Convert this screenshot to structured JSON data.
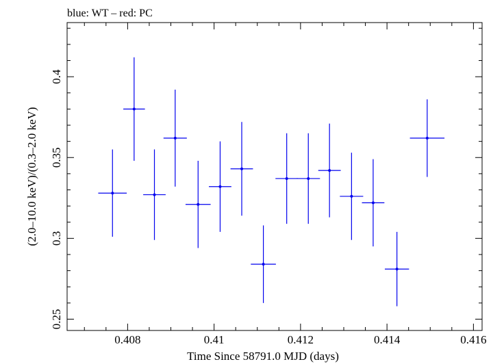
{
  "chart_data": {
    "type": "scatter",
    "title": "blue: WT – red: PC",
    "xlabel": "Time Since 58791.0 MJD (days)",
    "ylabel": "(2.0–10.0 keV)/(0.3–2.0 keV)",
    "xlim": [
      0.4066,
      0.4162
    ],
    "ylim": [
      0.243,
      0.4335
    ],
    "x_ticks": [
      0.408,
      0.41,
      0.412,
      0.414,
      0.416
    ],
    "x_tick_labels": [
      "0.408",
      "0.41",
      "0.412",
      "0.414",
      "0.416"
    ],
    "y_ticks": [
      0.25,
      0.3,
      0.35,
      0.4
    ],
    "y_tick_labels": [
      "0.25",
      "0.3",
      "0.35",
      "0.4"
    ],
    "grid": false,
    "series": [
      {
        "color": "#0000ee",
        "points": [
          {
            "x": 0.40765,
            "xerr": 0.00033,
            "y": 0.328,
            "yerr_lo": 0.027,
            "yerr_hi": 0.027
          },
          {
            "x": 0.40815,
            "xerr": 0.00025,
            "y": 0.38,
            "yerr_lo": 0.032,
            "yerr_hi": 0.032
          },
          {
            "x": 0.40862,
            "xerr": 0.00026,
            "y": 0.327,
            "yerr_lo": 0.028,
            "yerr_hi": 0.028
          },
          {
            "x": 0.4091,
            "xerr": 0.00027,
            "y": 0.362,
            "yerr_lo": 0.03,
            "yerr_hi": 0.03
          },
          {
            "x": 0.40963,
            "xerr": 0.00029,
            "y": 0.321,
            "yerr_lo": 0.027,
            "yerr_hi": 0.027
          },
          {
            "x": 0.41014,
            "xerr": 0.00026,
            "y": 0.332,
            "yerr_lo": 0.028,
            "yerr_hi": 0.028
          },
          {
            "x": 0.41064,
            "xerr": 0.00026,
            "y": 0.343,
            "yerr_lo": 0.029,
            "yerr_hi": 0.029
          },
          {
            "x": 0.41114,
            "xerr": 0.00029,
            "y": 0.284,
            "yerr_lo": 0.024,
            "yerr_hi": 0.024
          },
          {
            "x": 0.41168,
            "xerr": 0.00026,
            "y": 0.337,
            "yerr_lo": 0.028,
            "yerr_hi": 0.028
          },
          {
            "x": 0.41218,
            "xerr": 0.00027,
            "y": 0.337,
            "yerr_lo": 0.028,
            "yerr_hi": 0.028
          },
          {
            "x": 0.41267,
            "xerr": 0.00026,
            "y": 0.342,
            "yerr_lo": 0.029,
            "yerr_hi": 0.029
          },
          {
            "x": 0.41318,
            "xerr": 0.00027,
            "y": 0.326,
            "yerr_lo": 0.027,
            "yerr_hi": 0.027
          },
          {
            "x": 0.41368,
            "xerr": 0.00026,
            "y": 0.322,
            "yerr_lo": 0.027,
            "yerr_hi": 0.027
          },
          {
            "x": 0.41423,
            "xerr": 0.00028,
            "y": 0.281,
            "yerr_lo": 0.023,
            "yerr_hi": 0.023
          },
          {
            "x": 0.41493,
            "xerr": 0.0004,
            "y": 0.362,
            "yerr_lo": 0.024,
            "yerr_hi": 0.024
          }
        ]
      }
    ]
  }
}
